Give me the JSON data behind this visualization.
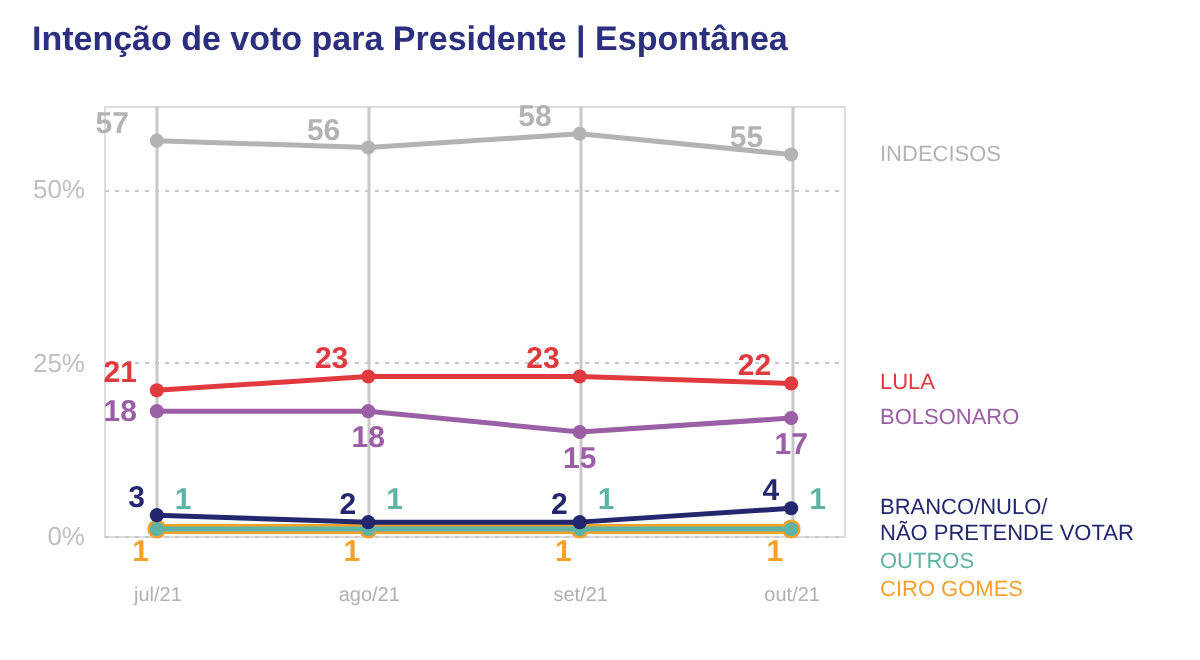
{
  "chart_data": {
    "type": "line",
    "title": "Intenção de voto para Presidente | Espontânea",
    "categories": [
      "jul/21",
      "ago/21",
      "set/21",
      "out/21"
    ],
    "series": [
      {
        "name": "INDECISOS",
        "color": "#b3b3b3",
        "values": [
          57,
          56,
          58,
          55
        ]
      },
      {
        "name": "LULA",
        "color": "#e0393e",
        "values": [
          21,
          23,
          23,
          22
        ]
      },
      {
        "name": "BOLSONARO",
        "color": "#9b5fa5",
        "values": [
          18,
          18,
          15,
          17
        ]
      },
      {
        "name": "BRANCO/NULO/\nNÃO PRETENDE VOTAR",
        "color": "#23276e",
        "values": [
          3,
          2,
          2,
          4
        ]
      },
      {
        "name": "OUTROS",
        "color": "#5fb3a5",
        "values": [
          1,
          1,
          1,
          1
        ]
      },
      {
        "name": "CIRO GOMES",
        "color": "#f7a12d",
        "values": [
          1,
          1,
          1,
          1
        ]
      }
    ],
    "ylim": [
      0,
      62
    ],
    "yticks": [
      {
        "value": 0,
        "label": "0%"
      },
      {
        "value": 25,
        "label": "25%"
      },
      {
        "value": 50,
        "label": "50%"
      }
    ],
    "grid": true,
    "marker": "circle",
    "data_labels": true,
    "line_style": "solid",
    "legend": "right"
  }
}
